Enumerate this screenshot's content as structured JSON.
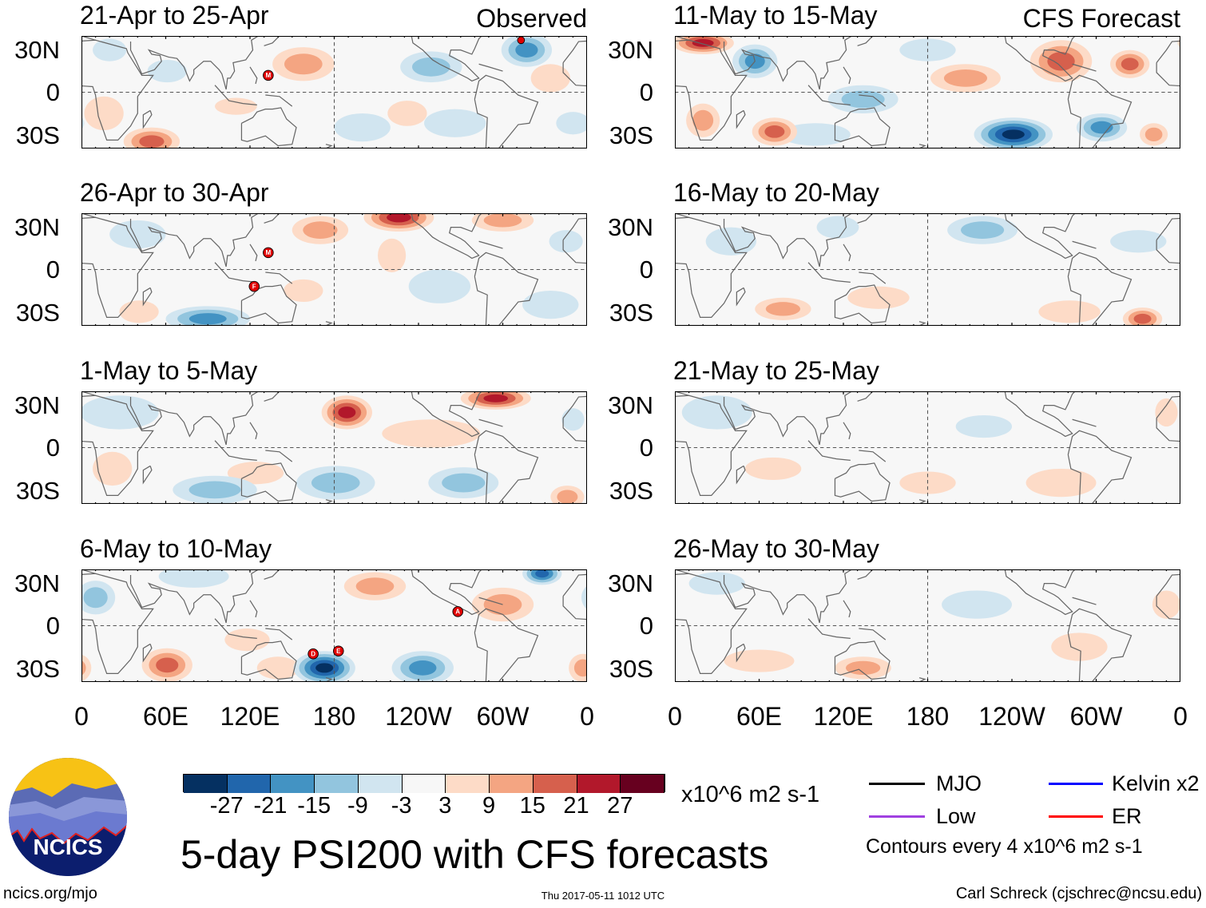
{
  "panels": {
    "left": [
      {
        "title": "21-Apr to 25-Apr",
        "tag": "Observed"
      },
      {
        "title": "26-Apr to 30-Apr"
      },
      {
        "title": "1-May to 5-May"
      },
      {
        "title": "6-May to 10-May"
      }
    ],
    "right": [
      {
        "title": "11-May to 15-May",
        "tag": "CFS Forecast"
      },
      {
        "title": "16-May to 20-May"
      },
      {
        "title": "21-May to 25-May"
      },
      {
        "title": "26-May to 30-May"
      }
    ]
  },
  "lat_labels": [
    "30N",
    "0",
    "30S"
  ],
  "lon_labels": [
    "0",
    "60E",
    "120E",
    "180",
    "120W",
    "60W",
    "0"
  ],
  "storm_labels": [
    "M",
    "M",
    "F",
    "D",
    "E",
    "A"
  ],
  "colorbar": {
    "colors": [
      "#053061",
      "#2166ac",
      "#4393c3",
      "#92c5de",
      "#d1e5f0",
      "#f7f7f7",
      "#fddbc7",
      "#f4a582",
      "#d6604d",
      "#b2182b",
      "#67001f"
    ],
    "labels": [
      "-27",
      "-21",
      "-15",
      "-9",
      "-3",
      "3",
      "9",
      "15",
      "21",
      "27"
    ],
    "units": "x10^6 m2 s-1"
  },
  "title": "5-day PSI200 with CFS forecasts",
  "legend": {
    "items": [
      {
        "label": "MJO",
        "color": "#000000"
      },
      {
        "label": "Kelvin x2",
        "color": "#0000ff"
      },
      {
        "label": "Low",
        "color": "#a040e0"
      },
      {
        "label": "ER",
        "color": "#ff0000"
      }
    ],
    "contours": "Contours every 4 x10^6 m2 s-1"
  },
  "logo": {
    "text": "NCICS"
  },
  "footer": {
    "url": "ncics.org/mjo",
    "timestamp": "Thu 2017-05-11 1012 UTC",
    "author": "Carl Schreck (cjschrec@ncsu.edu)"
  }
}
